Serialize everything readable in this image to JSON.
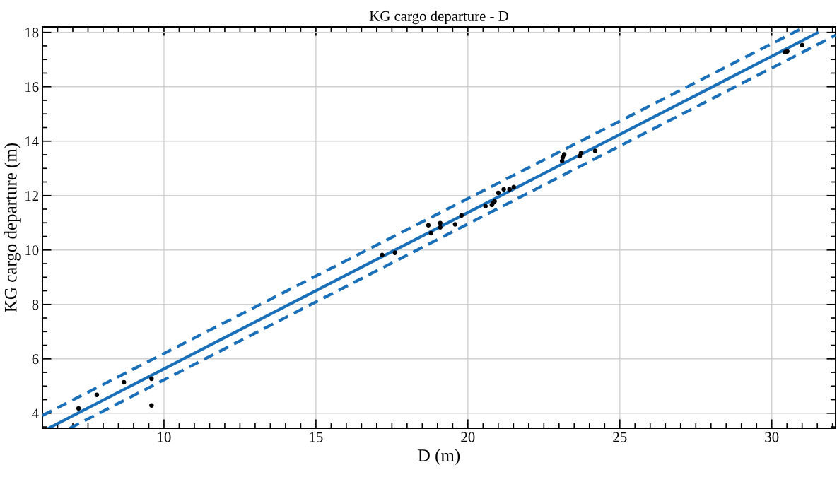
{
  "chart_data": {
    "type": "scatter",
    "title": "KG cargo departure - D",
    "xlabel": "D (m)",
    "ylabel": "KG cargo departure (m)",
    "xlim": [
      6,
      32.1
    ],
    "ylim": [
      3.45,
      18.2
    ],
    "xticks": [
      10,
      15,
      20,
      25,
      30
    ],
    "yticks": [
      4,
      6,
      8,
      10,
      12,
      14,
      16,
      18
    ],
    "grid": true,
    "legend": false,
    "series": [
      {
        "color": "#000000",
        "marker": "circle",
        "x": [
          7.19,
          7.79,
          8.68,
          9.59,
          9.59,
          17.18,
          17.6,
          18.7,
          18.79,
          19.09,
          19.09,
          19.58,
          19.79,
          20.58,
          20.79,
          20.84,
          20.88,
          21.0,
          21.18,
          21.37,
          21.51,
          23.12,
          23.1,
          23.17,
          23.68,
          23.72,
          24.19,
          30.44,
          30.51,
          31.0
        ],
        "values": [
          4.18,
          4.68,
          5.14,
          5.27,
          4.29,
          9.82,
          9.9,
          10.91,
          10.62,
          10.99,
          10.83,
          10.94,
          11.27,
          11.61,
          11.66,
          11.74,
          11.79,
          12.1,
          12.23,
          12.23,
          12.31,
          13.4,
          13.27,
          13.51,
          13.45,
          13.56,
          13.64,
          17.27,
          17.3,
          17.53
        ]
      },
      {
        "type": "line",
        "color": "#1a6fb9",
        "line_style": "solid",
        "x": [
          6.2,
          31.5
        ],
        "values": [
          3.45,
          17.98
        ]
      },
      {
        "type": "line",
        "color": "#1a6fb9",
        "line_style": "dashed",
        "x": [
          6,
          31
        ],
        "values": [
          3.92,
          18.15
        ]
      },
      {
        "type": "line",
        "color": "#1a6fb9",
        "line_style": "dashed",
        "x": [
          6.9,
          32.1
        ],
        "values": [
          3.45,
          17.89
        ]
      }
    ]
  }
}
